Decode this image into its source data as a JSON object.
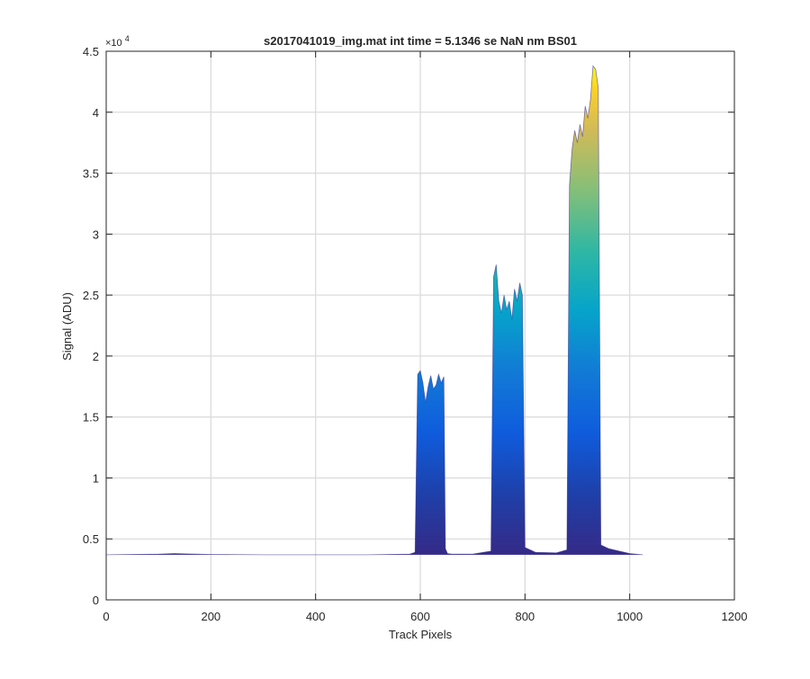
{
  "chart_data": {
    "type": "area",
    "title": "s2017041019_img.mat int time = 5.1346 se  NaN nm BS01",
    "xlabel": "Track Pixels",
    "ylabel": "Signal (ADU)",
    "xlim": [
      0,
      1200
    ],
    "ylim": [
      0,
      45000
    ],
    "x_ticks": [
      0,
      200,
      400,
      600,
      800,
      1000,
      1200
    ],
    "x_tick_labels": [
      "0",
      "200",
      "400",
      "600",
      "800",
      "1000",
      "1200"
    ],
    "y_ticks": [
      0,
      5000,
      10000,
      15000,
      20000,
      25000,
      30000,
      35000,
      40000,
      45000
    ],
    "y_tick_labels": [
      "0",
      "0.5",
      "1",
      "1.5",
      "2",
      "2.5",
      "3",
      "3.5",
      "4",
      "4.5"
    ],
    "y_exponent_label": "×10",
    "y_exponent_power": "4",
    "grid": true,
    "colormap": "parula",
    "baseline": 3700,
    "x": [
      0,
      100,
      130,
      200,
      300,
      400,
      500,
      580,
      590,
      595,
      600,
      605,
      610,
      615,
      620,
      625,
      630,
      635,
      640,
      645,
      648,
      652,
      660,
      700,
      735,
      740,
      745,
      750,
      755,
      760,
      765,
      770,
      775,
      780,
      785,
      790,
      795,
      800,
      820,
      860,
      880,
      885,
      890,
      895,
      900,
      905,
      910,
      915,
      920,
      925,
      930,
      935,
      940,
      945,
      960,
      1000,
      1025
    ],
    "y": [
      3700,
      3750,
      3800,
      3720,
      3700,
      3700,
      3700,
      3750,
      3900,
      18500,
      18800,
      17800,
      16200,
      17500,
      18400,
      17300,
      17600,
      18500,
      17800,
      18300,
      4200,
      3800,
      3750,
      3750,
      4000,
      26500,
      27500,
      24500,
      23500,
      25000,
      23800,
      24500,
      23000,
      25500,
      24500,
      26000,
      25000,
      4300,
      3900,
      3850,
      4100,
      34000,
      37000,
      38500,
      37500,
      39000,
      38000,
      40500,
      39500,
      41000,
      43800,
      43500,
      42000,
      4500,
      4200,
      3800,
      3700
    ]
  }
}
